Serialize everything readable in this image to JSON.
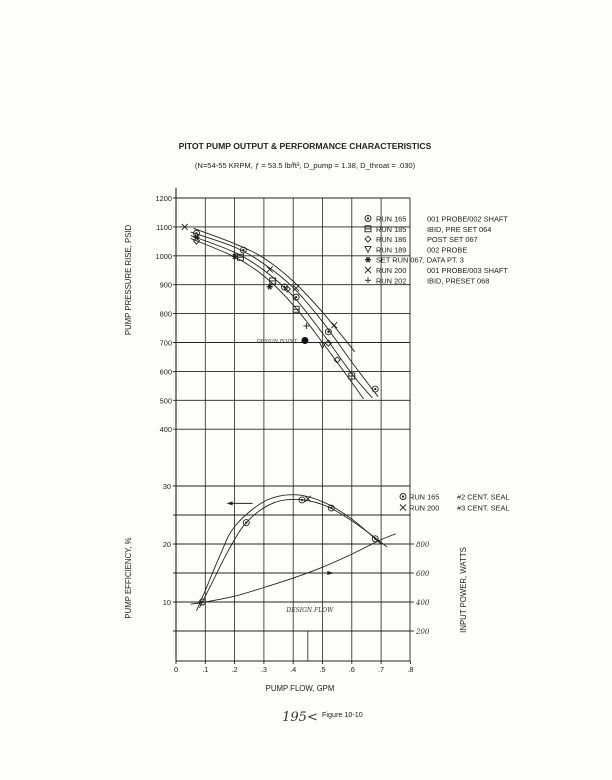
{
  "title": "PITOT PUMP OUTPUT & PERFORMANCE CHARACTERISTICS",
  "subtitle": "(N=54-55 KRPM, ƒ = 53.5 lb/ft³, D_pump = 1.38, D_throat = .030)",
  "page_number": "195<",
  "figure_label": "Figure 10-10",
  "chart_data": [
    {
      "type": "scatter",
      "ylabel": "PUMP PRESSURE RISE, PSID",
      "xlabel": "PUMP FLOW, GPM",
      "xlim": [
        0,
        0.8
      ],
      "ylim": [
        400,
        1200
      ],
      "yticks": [
        "400",
        "500",
        "600",
        "700",
        "800",
        "900",
        "1000",
        "1100",
        "1200"
      ],
      "grid": true,
      "legend_placement": "top-right",
      "legend": [
        {
          "marker": "circle",
          "run": "RUN 165",
          "note": "001 PROBE/002 SHAFT"
        },
        {
          "marker": "square",
          "run": "RUN 185",
          "note": "IBID, PRE SET 064"
        },
        {
          "marker": "diamond",
          "run": "RUN 186",
          "note": "POST SET 067"
        },
        {
          "marker": "triangle-down",
          "run": "RUN 189",
          "note": "002 PROBE"
        },
        {
          "marker": "star",
          "run": "SET RUN 067, DATA PT. 3",
          "note": ""
        },
        {
          "marker": "x",
          "run": "RUN 200",
          "note": "001 PROBE/003 SHAFT"
        },
        {
          "marker": "plus",
          "run": "RUN 202",
          "note": "IBID, PRESET 068"
        }
      ],
      "points": [
        {
          "marker": "x",
          "x": 0.03,
          "y": 1100
        },
        {
          "marker": "circle",
          "x": 0.07,
          "y": 1078
        },
        {
          "marker": "star",
          "x": 0.07,
          "y": 1064
        },
        {
          "marker": "diamond",
          "x": 0.07,
          "y": 1051
        },
        {
          "marker": "star",
          "x": 0.2,
          "y": 998
        },
        {
          "marker": "square",
          "x": 0.22,
          "y": 995
        },
        {
          "marker": "circle",
          "x": 0.23,
          "y": 1020
        },
        {
          "marker": "x",
          "x": 0.32,
          "y": 953
        },
        {
          "marker": "square",
          "x": 0.33,
          "y": 913
        },
        {
          "marker": "star",
          "x": 0.32,
          "y": 893
        },
        {
          "marker": "circle",
          "x": 0.37,
          "y": 892
        },
        {
          "marker": "diamond",
          "x": 0.38,
          "y": 885
        },
        {
          "marker": "x",
          "x": 0.41,
          "y": 888
        },
        {
          "marker": "circle",
          "x": 0.41,
          "y": 857
        },
        {
          "marker": "square",
          "x": 0.41,
          "y": 815
        },
        {
          "marker": "plus",
          "x": 0.445,
          "y": 757
        },
        {
          "marker": "circle",
          "x": 0.52,
          "y": 737
        },
        {
          "marker": "x",
          "x": 0.54,
          "y": 760
        },
        {
          "marker": "diamond",
          "x": 0.52,
          "y": 698
        },
        {
          "marker": "triangle-down",
          "x": 0.5,
          "y": 690
        },
        {
          "marker": "diamond",
          "x": 0.55,
          "y": 640
        },
        {
          "marker": "square",
          "x": 0.6,
          "y": 584
        },
        {
          "marker": "circle",
          "x": 0.68,
          "y": 539
        }
      ],
      "curves": [
        [
          [
            0.06,
            1095
          ],
          [
            0.2,
            1042
          ],
          [
            0.3,
            992
          ],
          [
            0.4,
            912
          ],
          [
            0.5,
            805
          ],
          [
            0.61,
            668
          ]
        ],
        [
          [
            0.05,
            1082
          ],
          [
            0.2,
            1030
          ],
          [
            0.3,
            972
          ],
          [
            0.4,
            890
          ],
          [
            0.5,
            772
          ],
          [
            0.6,
            632
          ],
          [
            0.69,
            512
          ]
        ],
        [
          [
            0.05,
            1070
          ],
          [
            0.2,
            1012
          ],
          [
            0.3,
            950
          ],
          [
            0.4,
            860
          ],
          [
            0.5,
            732
          ],
          [
            0.6,
            592
          ],
          [
            0.67,
            508
          ]
        ],
        [
          [
            0.05,
            1060
          ],
          [
            0.2,
            996
          ],
          [
            0.3,
            930
          ],
          [
            0.4,
            830
          ],
          [
            0.5,
            700
          ],
          [
            0.6,
            562
          ],
          [
            0.64,
            505
          ]
        ]
      ],
      "annotation": {
        "text": "DESIGN POINT",
        "x": 0.44,
        "y": 707
      }
    },
    {
      "type": "line",
      "ylabel": "PUMP EFFICIENCY, %",
      "y2label": "INPUT POWER, WATTS",
      "xlabel": "PUMP FLOW, GPM",
      "xlim": [
        0,
        0.8
      ],
      "ylim": [
        0,
        30
      ],
      "xticks": [
        "0",
        ".1",
        ".2",
        ".3",
        ".4",
        ".5",
        ".6",
        ".7",
        ".8"
      ],
      "yticks": [
        "10",
        "20",
        "30"
      ],
      "y2ticks": [
        "200",
        "400",
        "600",
        "800"
      ],
      "grid": true,
      "legend_placement": "top-right",
      "legend": [
        {
          "marker": "circle",
          "run": "RUN 165",
          "note": "#2 CENT. SEAL"
        },
        {
          "marker": "x",
          "run": "RUN 200",
          "note": "#3 CENT. SEAL"
        }
      ],
      "efficiency_points": [
        {
          "marker": "circle",
          "x": 0.09,
          "y": 10
        },
        {
          "marker": "circle",
          "x": 0.24,
          "y": 23.7
        },
        {
          "marker": "circle",
          "x": 0.43,
          "y": 27.6
        },
        {
          "marker": "x",
          "x": 0.45,
          "y": 27.8
        },
        {
          "marker": "circle",
          "x": 0.53,
          "y": 26.2
        },
        {
          "marker": "circle",
          "x": 0.68,
          "y": 20.9
        }
      ],
      "efficiency_curves": [
        [
          [
            0.07,
            8.5
          ],
          [
            0.1,
            12
          ],
          [
            0.15,
            18
          ],
          [
            0.2,
            23
          ],
          [
            0.3,
            27.3
          ],
          [
            0.4,
            28.5
          ],
          [
            0.5,
            27.3
          ],
          [
            0.6,
            24.3
          ],
          [
            0.7,
            20
          ]
        ],
        [
          [
            0.08,
            9
          ],
          [
            0.12,
            13
          ],
          [
            0.18,
            19
          ],
          [
            0.24,
            23.7
          ],
          [
            0.32,
            26.8
          ],
          [
            0.4,
            27.7
          ],
          [
            0.5,
            26.8
          ],
          [
            0.6,
            24
          ],
          [
            0.72,
            19.5
          ]
        ]
      ],
      "power_curve_watts": [
        [
          0.05,
          385
        ],
        [
          0.1,
          400
        ],
        [
          0.2,
          440
        ],
        [
          0.3,
          500
        ],
        [
          0.4,
          565
        ],
        [
          0.5,
          640
        ],
        [
          0.6,
          730
        ],
        [
          0.7,
          830
        ],
        [
          0.75,
          870
        ]
      ],
      "annotation": {
        "text": "DESIGN FLOW",
        "x": 0.45
      }
    }
  ]
}
